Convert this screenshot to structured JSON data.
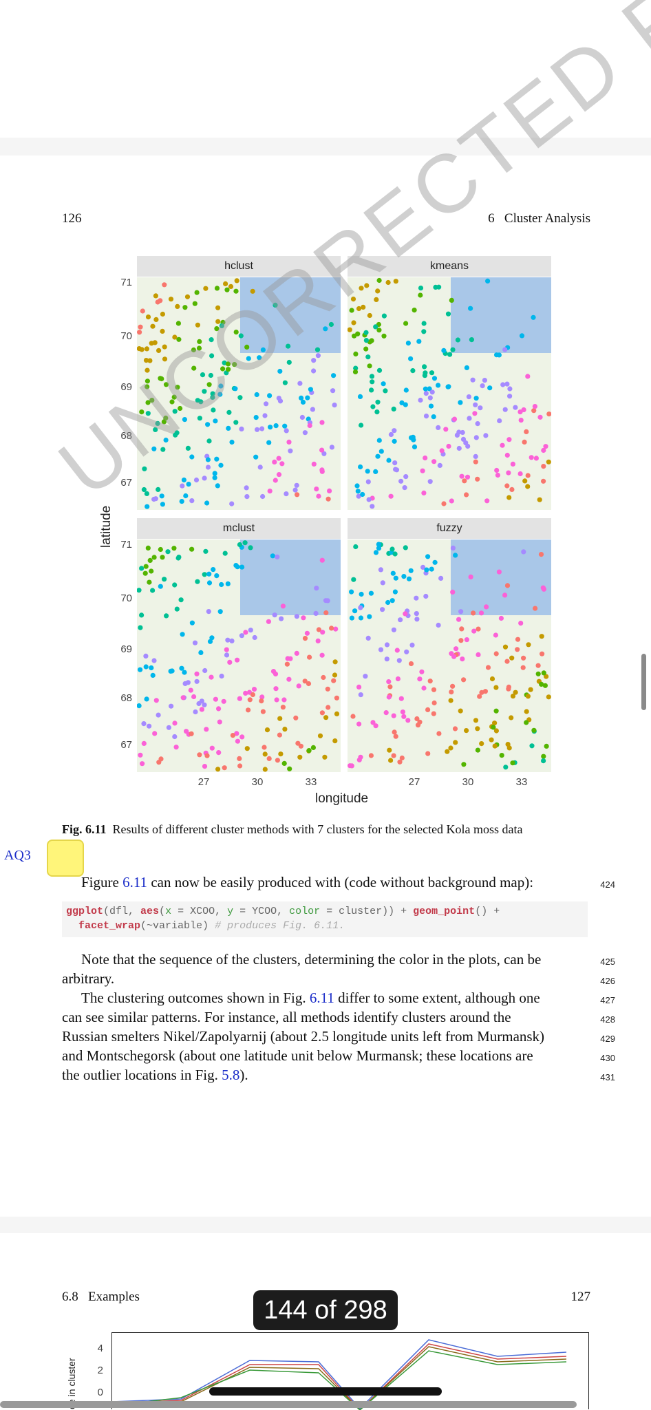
{
  "pages": {
    "top": {
      "page_number": "126",
      "running_head": "6   Cluster Analysis"
    },
    "bottom": {
      "running_head": "6.8   Examples",
      "page_number": "127",
      "ylabel_partial": "ce in cluster",
      "yticks": [
        "4",
        "2",
        "0"
      ]
    }
  },
  "figure": {
    "panels": [
      "hclust",
      "kmeans",
      "mclust",
      "fuzzy"
    ],
    "xlabel": "longitude",
    "ylabel": "latitude",
    "xticks": [
      "27",
      "30",
      "33"
    ],
    "yticks": [
      "71",
      "70",
      "69",
      "68",
      "67"
    ],
    "caption_label": "Fig. 6.11",
    "caption_text": "Results of different cluster methods with 7 clusters for the selected Kola moss data"
  },
  "chart_data": [
    {
      "type": "scatter",
      "title": "hclust",
      "xlabel": "longitude",
      "ylabel": "latitude",
      "xlim": [
        24.5,
        36
      ],
      "ylim": [
        66.5,
        71.1
      ]
    },
    {
      "type": "scatter",
      "title": "kmeans",
      "xlabel": "longitude",
      "ylabel": "latitude",
      "xlim": [
        24.5,
        36
      ],
      "ylim": [
        66.5,
        71.1
      ]
    },
    {
      "type": "scatter",
      "title": "mclust",
      "xlabel": "longitude",
      "ylabel": "latitude",
      "xlim": [
        24.5,
        36
      ],
      "ylim": [
        66.5,
        71.1
      ]
    },
    {
      "type": "scatter",
      "title": "fuzzy",
      "xlabel": "longitude",
      "ylabel": "latitude",
      "xlim": [
        24.5,
        36
      ],
      "ylim": [
        66.5,
        71.1
      ]
    }
  ],
  "cluster_colors": [
    "#f8766d",
    "#c49a00",
    "#53b400",
    "#00c094",
    "#00b6eb",
    "#a58aff",
    "#fb61d7"
  ],
  "annotation": {
    "aq_label": "AQ3"
  },
  "text": {
    "para1_pre": "Figure ",
    "para1_ref": "6.11",
    "para1_post": " can now be easily produced with (code without background map):",
    "para1_line": "424",
    "code_l1_fn": "ggplot",
    "code_l1_a": "(dfl, ",
    "code_l1_aes": "aes",
    "code_l1_b": "(",
    "code_l1_x": "x",
    "code_l1_c": " = XCOO, ",
    "code_l1_y": "y",
    "code_l1_d": " = YCOO, ",
    "code_l1_color": "color",
    "code_l1_e": " = cluster)) + ",
    "code_l1_gp": "geom_point",
    "code_l1_f": "() +",
    "code_l2_fw": "facet_wrap",
    "code_l2_a": "(~variable) ",
    "code_l2_cm": "# produces Fig. 6.11.",
    "para2_l1": "Note that the sequence of the clusters, determining the color in the plots, can be",
    "para2_l2": "arbitrary.",
    "para2_n1": "425",
    "para2_n2": "426",
    "para3_l1_pre": "The clustering outcomes shown in Fig. ",
    "para3_l1_ref": "6.11",
    "para3_l1_post": " differ to some extent, although one",
    "para3_l2": "can see similar patterns. For instance, all methods identify clusters around the",
    "para3_l3": "Russian smelters Nikel/Zapolyarnij (about 2.5 longitude units left from Murmansk)",
    "para3_l4": "and Montschegorsk (about one latitude unit below Murmansk; these locations are",
    "para3_l5_pre": "the outlier locations in Fig. ",
    "para3_l5_ref": "5.8",
    "para3_l5_post": ").",
    "para3_n1": "427",
    "para3_n2": "428",
    "para3_n3": "429",
    "para3_n4": "430",
    "para3_n5": "431"
  },
  "watermark": "UNCORRECTED PROOF",
  "viewer": {
    "page_counter": "144 of 298"
  }
}
